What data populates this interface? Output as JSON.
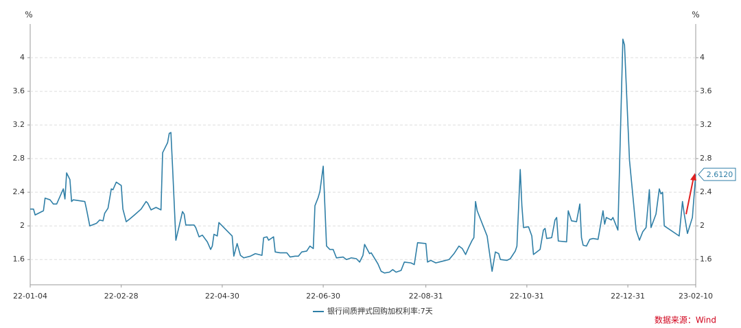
{
  "chart_data": {
    "type": "line",
    "y_unit": "%",
    "y2_unit": "%",
    "ylim": [
      1.3,
      4.4
    ],
    "yticks": [
      1.6,
      2,
      2.4,
      2.8,
      3.2,
      3.6,
      4
    ],
    "y2lim": [
      1.3,
      4.4
    ],
    "y2ticks": [
      1.6,
      2,
      2.4,
      2.8,
      3.2,
      3.6,
      4
    ],
    "xlim": [
      "22-01-04",
      "23-02-10"
    ],
    "xticks": [
      "22-01-04",
      "22-02-28",
      "22-04-30",
      "22-06-30",
      "22-08-31",
      "22-10-31",
      "22-12-31",
      "23-02-10"
    ],
    "grid": true,
    "x": [
      "22-01-04",
      "22-01-06",
      "22-01-07",
      "22-01-12",
      "22-01-13",
      "22-01-16",
      "22-01-18",
      "22-01-20",
      "22-01-22",
      "22-01-24",
      "22-01-25",
      "22-01-26",
      "22-01-28",
      "22-01-29",
      "22-01-30",
      "22-02-06",
      "22-02-07",
      "22-02-09",
      "22-02-13",
      "22-02-15",
      "22-02-17",
      "22-02-18",
      "22-02-20",
      "22-02-22",
      "22-02-23",
      "22-02-25",
      "22-02-28",
      "22-03-01",
      "22-03-03",
      "22-03-05",
      "22-03-08",
      "22-03-12",
      "22-03-15",
      "22-03-16",
      "22-03-18",
      "22-03-21",
      "22-03-24",
      "22-03-25",
      "22-03-28",
      "22-03-29",
      "22-03-30",
      "22-03-31",
      "22-04-02",
      "22-04-04",
      "22-04-06",
      "22-04-07",
      "22-04-08",
      "22-04-13",
      "22-04-14",
      "22-04-16",
      "22-04-18",
      "22-04-21",
      "22-04-23",
      "22-04-24",
      "22-04-25",
      "22-04-27",
      "22-04-28",
      "22-05-06",
      "22-05-07",
      "22-05-09",
      "22-05-11",
      "22-05-13",
      "22-05-17",
      "22-05-20",
      "22-05-24",
      "22-05-25",
      "22-05-27",
      "22-05-28",
      "22-05-31",
      "22-06-01",
      "22-06-04",
      "22-06-08",
      "22-06-10",
      "22-06-13",
      "22-06-15",
      "22-06-17",
      "22-06-20",
      "22-06-22",
      "22-06-24",
      "22-06-25",
      "22-06-27",
      "22-06-28",
      "22-06-30",
      "22-07-02",
      "22-07-04",
      "22-07-06",
      "22-07-08",
      "22-07-12",
      "22-07-14",
      "22-07-17",
      "22-07-20",
      "22-07-22",
      "22-07-24",
      "22-07-25",
      "22-07-28",
      "22-07-29",
      "22-08-02",
      "22-08-04",
      "22-08-06",
      "22-08-09",
      "22-08-11",
      "22-08-13",
      "22-08-16",
      "22-08-18",
      "22-08-22",
      "22-08-24",
      "22-08-26",
      "22-08-31",
      "22-09-01",
      "22-09-03",
      "22-09-06",
      "22-09-10",
      "22-09-14",
      "22-09-17",
      "22-09-20",
      "22-09-22",
      "22-09-24",
      "22-09-26",
      "22-09-28",
      "22-09-29",
      "22-09-30",
      "22-10-01",
      "22-10-07",
      "22-10-10",
      "22-10-12",
      "22-10-14",
      "22-10-15",
      "22-10-19",
      "22-10-21",
      "22-10-24",
      "22-10-25",
      "22-10-27",
      "22-10-28",
      "22-10-29",
      "22-11-01",
      "22-11-03",
      "22-11-04",
      "22-11-08",
      "22-11-10",
      "22-11-11",
      "22-11-12",
      "22-11-15",
      "22-11-17",
      "22-11-18",
      "22-11-19",
      "22-11-24",
      "22-11-25",
      "22-11-27",
      "22-11-30",
      "22-12-02",
      "22-12-03",
      "22-12-04",
      "22-12-06",
      "22-12-08",
      "22-12-10",
      "22-12-13",
      "22-12-16",
      "22-12-17",
      "22-12-18",
      "22-12-21",
      "22-12-22",
      "22-12-25",
      "22-12-28",
      "22-12-29",
      "23-01-01",
      "23-01-05",
      "23-01-07",
      "23-01-09",
      "23-01-11",
      "23-01-13",
      "23-01-14",
      "23-01-17",
      "23-01-19",
      "23-01-20",
      "23-01-21",
      "23-01-22",
      "23-01-31",
      "23-02-02",
      "23-02-03",
      "23-02-05",
      "23-02-08",
      "23-02-10"
    ],
    "series": [
      {
        "name": "银行间质押式回购加权利率:7天",
        "color": "#2e7ea6",
        "values": [
          2.2,
          2.2,
          2.13,
          2.18,
          2.33,
          2.31,
          2.26,
          2.26,
          2.35,
          2.44,
          2.32,
          2.63,
          2.55,
          2.29,
          2.31,
          2.29,
          2.2,
          2.0,
          2.03,
          2.07,
          2.06,
          2.15,
          2.21,
          2.44,
          2.43,
          2.52,
          2.48,
          2.2,
          2.05,
          2.08,
          2.13,
          2.2,
          2.29,
          2.27,
          2.19,
          2.22,
          2.19,
          2.87,
          2.99,
          3.1,
          3.11,
          2.7,
          1.83,
          2.0,
          2.17,
          2.14,
          2.01,
          2.01,
          1.98,
          1.87,
          1.89,
          1.81,
          1.72,
          1.76,
          1.9,
          1.88,
          2.04,
          1.88,
          1.64,
          1.79,
          1.65,
          1.62,
          1.64,
          1.67,
          1.65,
          1.86,
          1.87,
          1.83,
          1.87,
          1.69,
          1.68,
          1.68,
          1.63,
          1.64,
          1.64,
          1.69,
          1.7,
          1.76,
          1.73,
          2.24,
          2.34,
          2.41,
          2.71,
          1.76,
          1.72,
          1.72,
          1.62,
          1.63,
          1.6,
          1.62,
          1.61,
          1.57,
          1.65,
          1.78,
          1.67,
          1.68,
          1.55,
          1.46,
          1.44,
          1.45,
          1.48,
          1.45,
          1.47,
          1.57,
          1.56,
          1.54,
          1.8,
          1.79,
          1.57,
          1.59,
          1.56,
          1.58,
          1.6,
          1.67,
          1.76,
          1.73,
          1.66,
          1.75,
          1.83,
          1.86,
          2.29,
          2.18,
          1.88,
          1.46,
          1.69,
          1.67,
          1.6,
          1.59,
          1.61,
          1.7,
          1.76,
          2.67,
          2.24,
          1.98,
          1.99,
          1.88,
          1.66,
          1.72,
          1.95,
          1.97,
          1.85,
          1.86,
          2.07,
          2.1,
          1.82,
          1.81,
          2.18,
          2.06,
          2.05,
          2.26,
          1.86,
          1.77,
          1.76,
          1.84,
          1.85,
          1.84,
          2.18,
          2.02,
          2.1,
          2.07,
          2.1,
          1.95,
          4.22,
          4.15,
          2.78,
          1.95,
          1.83,
          1.93,
          1.98,
          2.43,
          1.98,
          2.14,
          2.44,
          2.38,
          2.4,
          2.0,
          1.88,
          2.29,
          2.15,
          1.91,
          2.1,
          2.612
        ]
      }
    ],
    "annotation": "2.6120",
    "source": "数据来源：Wind"
  }
}
